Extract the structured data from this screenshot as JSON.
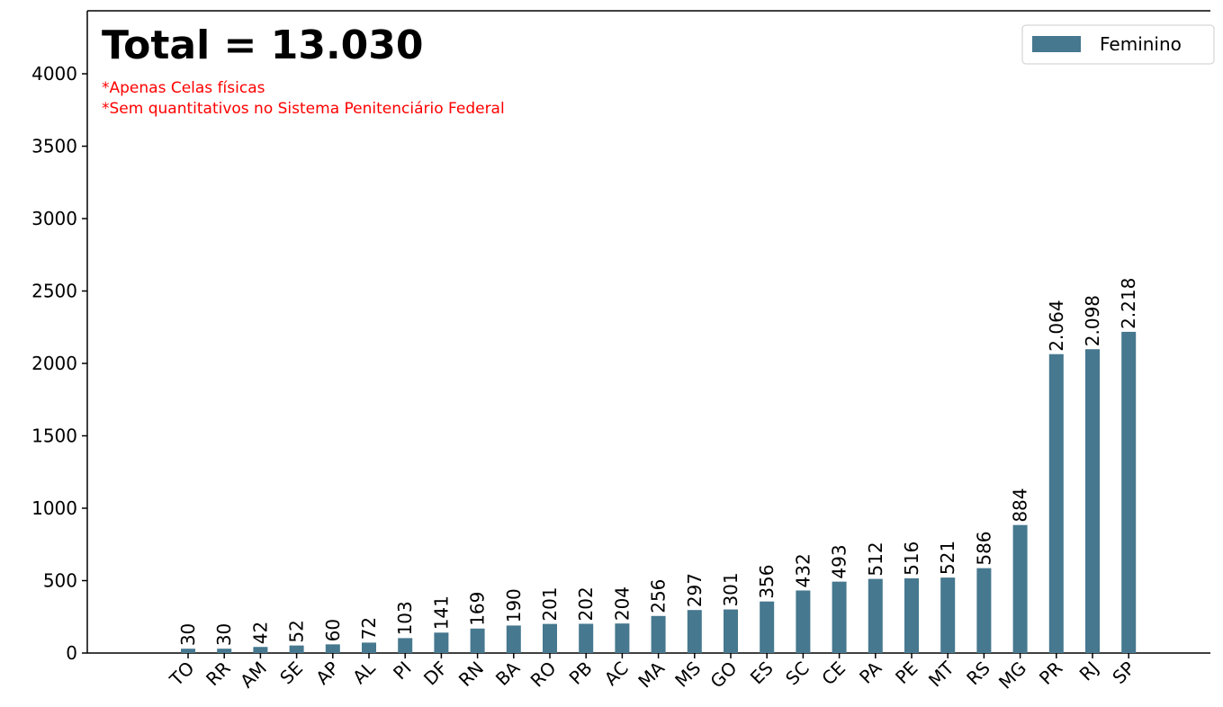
{
  "chart_data": {
    "type": "bar",
    "title": "Total = 13.030",
    "annotations": [
      "*Apenas Celas físicas",
      "*Sem quantitativos no Sistema Penitenciário Federal"
    ],
    "categories": [
      "TO",
      "RR",
      "AM",
      "SE",
      "AP",
      "AL",
      "PI",
      "DF",
      "RN",
      "BA",
      "RO",
      "PB",
      "AC",
      "MA",
      "MS",
      "GO",
      "ES",
      "SC",
      "CE",
      "PA",
      "PE",
      "MT",
      "RS",
      "MG",
      "PR",
      "RJ",
      "SP"
    ],
    "series": [
      {
        "name": "Feminino",
        "color": "#46788f",
        "values": [
          30,
          30,
          42,
          52,
          60,
          72,
          103,
          141,
          169,
          190,
          201,
          202,
          204,
          256,
          297,
          301,
          356,
          432,
          493,
          512,
          516,
          521,
          586,
          884,
          2064,
          2098,
          2218
        ],
        "value_labels": [
          "30",
          "30",
          "42",
          "52",
          "60",
          "72",
          "103",
          "141",
          "169",
          "190",
          "201",
          "202",
          "204",
          "256",
          "297",
          "301",
          "356",
          "432",
          "493",
          "512",
          "516",
          "521",
          "586",
          "884",
          "2.064",
          "2.098",
          "2.218"
        ]
      }
    ],
    "ylim": [
      0,
      4435
    ],
    "yticks": [
      0,
      500,
      1000,
      1500,
      2000,
      2500,
      3000,
      3500,
      4000
    ],
    "legend": "upper right"
  }
}
